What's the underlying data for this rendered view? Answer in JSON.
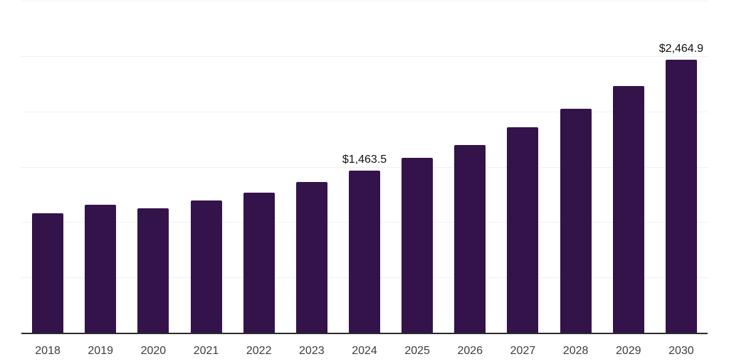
{
  "chart_data": {
    "type": "bar",
    "title": "",
    "xlabel": "",
    "ylabel": "",
    "categories": [
      "2018",
      "2019",
      "2020",
      "2021",
      "2022",
      "2023",
      "2024",
      "2025",
      "2026",
      "2027",
      "2028",
      "2029",
      "2030"
    ],
    "values": [
      1080.1,
      1155.3,
      1125.4,
      1195.6,
      1267.3,
      1363.9,
      1463.5,
      1577.8,
      1695.2,
      1856.9,
      2024.9,
      2229.4,
      2464.9
    ],
    "bar_labels": [
      "",
      "",
      "",
      "",
      "",
      "",
      "$1,463.5",
      "",
      "",
      "",
      "",
      "",
      "$2,464.9"
    ],
    "ylim": [
      0,
      3000
    ],
    "grid_step": 500,
    "grid_on": true,
    "legend": "none"
  },
  "colors": {
    "bar": "#331349",
    "gridline": "#f1f1f2",
    "axis_line": "#2b2b2b",
    "x_tick_label": "#3d3d3d",
    "data_label": "#111111",
    "background": "#ffffff"
  }
}
